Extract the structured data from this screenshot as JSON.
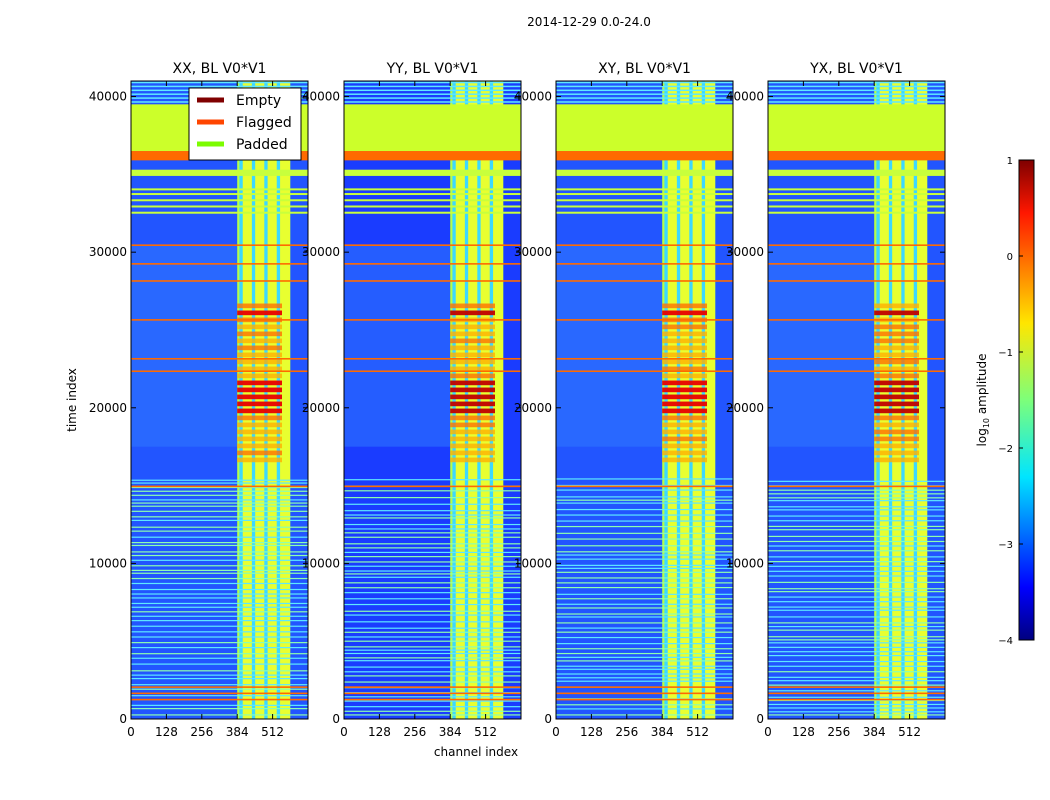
{
  "figure": {
    "suptitle": "2014-12-29 0.0-24.0",
    "xlabel": "channel index",
    "ylabel": "time index"
  },
  "chart_data": {
    "type": "heatmap",
    "x_ticks": [
      "0",
      "128",
      "256",
      "384",
      "512"
    ],
    "y_ticks": [
      "0",
      "10000",
      "20000",
      "30000",
      "40000"
    ],
    "x_tick_values": [
      0,
      128,
      256,
      384,
      512
    ],
    "y_tick_values": [
      0,
      10000,
      20000,
      30000,
      40000
    ],
    "xlim": [
      0,
      640
    ],
    "ylim": [
      0,
      41000
    ],
    "panels": [
      {
        "title": "XX, BL V0*V1",
        "pol": "XX"
      },
      {
        "title": "YY, BL V0*V1",
        "pol": "YY"
      },
      {
        "title": "XY, BL V0*V1",
        "pol": "XY"
      },
      {
        "title": "YX, BL V0*V1",
        "pol": "YX"
      }
    ],
    "legend": {
      "placement": "top-right of first panel",
      "entries": [
        {
          "label": "Empty",
          "color": "#800000"
        },
        {
          "label": "Flagged",
          "color": "#ff4500"
        },
        {
          "label": "Padded",
          "color": "#7cfc00"
        }
      ]
    },
    "colorbar": {
      "label": "log10 amplitude",
      "range": [
        -4,
        1
      ],
      "ticks": [
        "1",
        "0",
        "−1",
        "−2",
        "−3",
        "−4"
      ],
      "tick_values": [
        1,
        0,
        -1,
        -2,
        -3,
        -4
      ],
      "colormap": "jet"
    },
    "padded_time_ranges": [
      [
        36500,
        39500
      ]
    ],
    "flagged_time_ranges": [
      [
        35900,
        36500
      ]
    ],
    "bright_channel_band": [
      384,
      576
    ]
  }
}
